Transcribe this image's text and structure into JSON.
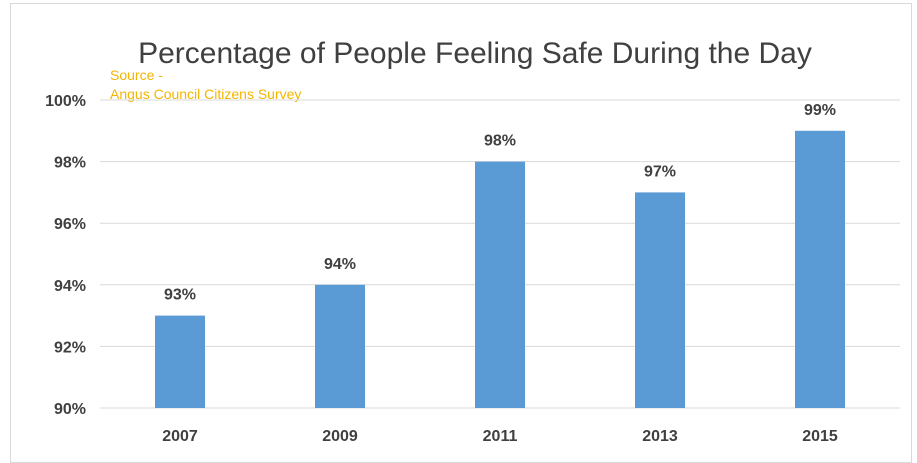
{
  "chart_data": {
    "type": "bar",
    "title": "Percentage of People Feeling Safe During the Day",
    "source_lines": [
      "Source -",
      "Angus Council Citizens Survey"
    ],
    "categories": [
      "2007",
      "2009",
      "2011",
      "2013",
      "2015"
    ],
    "values": [
      93,
      94,
      98,
      97,
      99
    ],
    "data_labels": [
      "93%",
      "94%",
      "98%",
      "97%",
      "99%"
    ],
    "ylim": [
      90,
      100
    ],
    "yticks": [
      90,
      92,
      94,
      96,
      98,
      100
    ],
    "ytick_labels": [
      "90%",
      "92%",
      "94%",
      "96%",
      "98%",
      "100%"
    ],
    "xlabel": "",
    "ylabel": "",
    "grid": true,
    "legend": "none",
    "colors": {
      "bar": "#5b9bd5",
      "grid": "#d9d9d9",
      "source": "#f2b600",
      "text": "#404040"
    }
  }
}
